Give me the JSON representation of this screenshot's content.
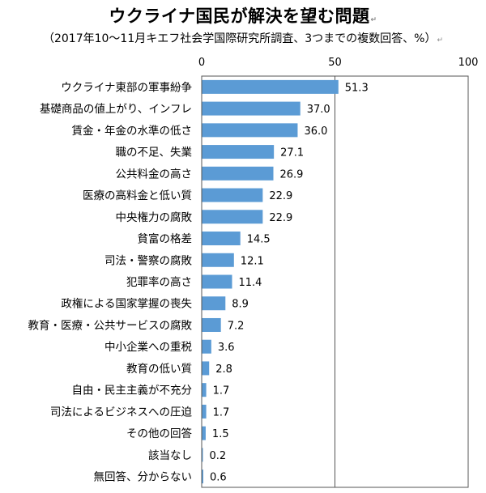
{
  "header": {
    "title": "ウクライナ国民が解決を望む問題",
    "subtitle": "（2017年10～11月キエフ社会学国際研究所調査、3つまでの複数回答、%）",
    "return_mark": "↵"
  },
  "chart_data": {
    "type": "bar",
    "orientation": "horizontal",
    "title": "ウクライナ国民が解決を望む問題",
    "subtitle": "（2017年10～11月キエフ社会学国際研究所調査、3つまでの複数回答、%）",
    "xlim": [
      0,
      100
    ],
    "xticks": [
      0,
      50,
      100
    ],
    "gridline_at": 50,
    "bar_color": "#5b9bd5",
    "categories": [
      "ウクライナ東部の軍事紛争",
      "基礎商品の値上がり、インフレ",
      "賃金・年金の水準の低さ",
      "職の不足、失業",
      "公共料金の高さ",
      "医療の高料金と低い質",
      "中央権力の腐敗",
      "貧富の格差",
      "司法・警察の腐敗",
      "犯罪率の高さ",
      "政権による国家掌握の喪失",
      "教育・医療・公共サービスの腐敗",
      "中小企業への重税",
      "教育の低い質",
      "自由・民主主義が不充分",
      "司法によるビジネスへの圧迫",
      "その他の回答",
      "該当なし",
      "無回答、分からない"
    ],
    "values": [
      51.3,
      37.0,
      36.0,
      27.1,
      26.9,
      22.9,
      22.9,
      14.5,
      12.1,
      11.4,
      8.9,
      7.2,
      3.6,
      2.8,
      1.7,
      1.7,
      1.5,
      0.2,
      0.6
    ],
    "value_labels": [
      "51.3",
      "37.0",
      "36.0",
      "27.1",
      "26.9",
      "22.9",
      "22.9",
      "14.5",
      "12.1",
      "11.4",
      "8.9",
      "7.2",
      "3.6",
      "2.8",
      "1.7",
      "1.7",
      "1.5",
      "0.2",
      "0.6"
    ]
  }
}
